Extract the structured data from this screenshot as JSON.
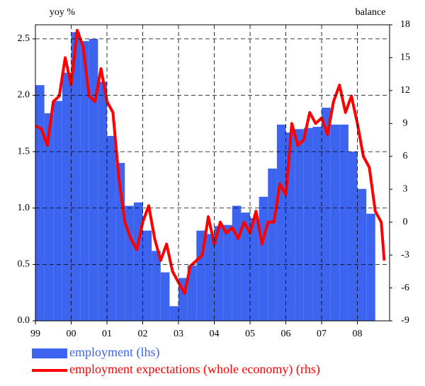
{
  "chart_data": {
    "type": "combo",
    "y_label": "yoy %",
    "y2_label": "balance",
    "xlim": [
      1999,
      2008.9
    ],
    "xticks": [
      {
        "value": 1999,
        "label": "99"
      },
      {
        "value": 2000,
        "label": "00"
      },
      {
        "value": 2001,
        "label": "01"
      },
      {
        "value": 2002,
        "label": "02"
      },
      {
        "value": 2003,
        "label": "03"
      },
      {
        "value": 2004,
        "label": "04"
      },
      {
        "value": 2005,
        "label": "05"
      },
      {
        "value": 2006,
        "label": "06"
      },
      {
        "value": 2007,
        "label": "07"
      },
      {
        "value": 2008,
        "label": "08"
      }
    ],
    "ylim": [
      0,
      2.625
    ],
    "yticks": [
      {
        "value": 0,
        "label": "0.0"
      },
      0.5,
      {
        "value": 1,
        "label": "1.0"
      },
      1.5,
      {
        "value": 2,
        "label": "2.0"
      },
      2.5
    ],
    "y2lim": [
      -9,
      18
    ],
    "y2ticks": [
      -9,
      -6,
      -3,
      0,
      3,
      6,
      9,
      12,
      15,
      18
    ],
    "grid": true,
    "legend": "bottom-left",
    "series": [
      {
        "name": "employment (lhs)",
        "type": "bar",
        "color": "#3c64ee",
        "x": [
          1999,
          1999.25,
          1999.5,
          1999.75,
          2000,
          2000.25,
          2000.5,
          2000.75,
          2001,
          2001.25,
          2001.5,
          2001.75,
          2002,
          2002.25,
          2002.5,
          2002.75,
          2003,
          2003.25,
          2003.5,
          2003.75,
          2004,
          2004.25,
          2004.5,
          2004.75,
          2005,
          2005.25,
          2005.5,
          2005.75,
          2006,
          2006.25,
          2006.5,
          2006.75,
          2007,
          2007.25,
          2007.5,
          2007.75,
          2008,
          2008.25
        ],
        "values": [
          2.09,
          1.84,
          1.95,
          2.2,
          2.56,
          2.48,
          2.5,
          2.12,
          1.64,
          1.4,
          1.02,
          1.05,
          0.8,
          0.62,
          0.43,
          0.13,
          0.38,
          0.49,
          0.8,
          0.77,
          0.84,
          0.85,
          1.02,
          0.96,
          0.91,
          1.1,
          1.35,
          1.74,
          1.67,
          1.7,
          1.71,
          1.72,
          1.89,
          1.74,
          1.74,
          1.5,
          1.17,
          0.95
        ]
      },
      {
        "name": "employment expectations (whole economy) (rhs)",
        "type": "line",
        "axis": "y2",
        "color": "#ff0000",
        "x": [
          1999,
          1999.167,
          1999.333,
          1999.5,
          1999.667,
          1999.833,
          2000,
          2000.167,
          2000.333,
          2000.5,
          2000.667,
          2000.833,
          2001,
          2001.167,
          2001.333,
          2001.5,
          2001.667,
          2001.833,
          2002,
          2002.167,
          2002.333,
          2002.5,
          2002.667,
          2002.833,
          2003,
          2003.167,
          2003.333,
          2003.5,
          2003.667,
          2003.833,
          2004,
          2004.167,
          2004.333,
          2004.5,
          2004.667,
          2004.833,
          2005,
          2005.167,
          2005.333,
          2005.5,
          2005.667,
          2005.833,
          2006,
          2006.167,
          2006.333,
          2006.5,
          2006.667,
          2006.833,
          2007,
          2007.167,
          2007.333,
          2007.5,
          2007.667,
          2007.833,
          2008,
          2008.167,
          2008.333,
          2008.5,
          2008.667,
          2008.75
        ],
        "values": [
          8.8,
          8.5,
          7,
          11,
          11.5,
          15,
          12.5,
          17.5,
          16,
          11.5,
          11,
          14,
          11,
          10,
          4,
          0,
          -1.5,
          -2.5,
          0,
          1.5,
          -1.5,
          -3.5,
          -2,
          -4.5,
          -5.5,
          -6.5,
          -4,
          -3.5,
          -3,
          0.5,
          -2,
          0,
          -1,
          -0.5,
          -1.5,
          0,
          -1,
          1,
          -2,
          0,
          0,
          3.5,
          2.5,
          9,
          7,
          7.5,
          10,
          9,
          9.5,
          8,
          11,
          12.5,
          10,
          11.5,
          9,
          6,
          5,
          1,
          0,
          -3.5
        ]
      }
    ]
  }
}
